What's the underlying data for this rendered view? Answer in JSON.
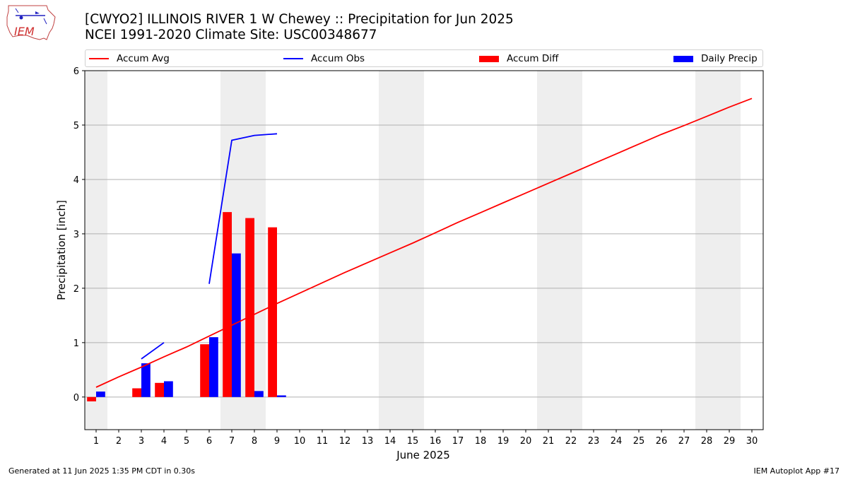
{
  "header": {
    "title_line1": "[CWYO2] ILLINOIS RIVER 1 W Chewey :: Precipitation for Jun 2025",
    "title_line2": "NCEI 1991-2020 Climate Site: USC00348677",
    "logo_text": "IEM"
  },
  "legend": {
    "items": [
      {
        "label": "Accum Avg",
        "marker": "line",
        "color": "#ff0000"
      },
      {
        "label": "Accum Obs",
        "marker": "line",
        "color": "#0000ff"
      },
      {
        "label": "Accum Diff",
        "marker": "box",
        "color": "#ff0000"
      },
      {
        "label": "Daily Precip",
        "marker": "box",
        "color": "#0000ff"
      }
    ]
  },
  "footer": {
    "generated": "Generated at 11 Jun 2025 1:35 PM CDT in 0.30s",
    "app": "IEM Autoplot App #17"
  },
  "chart_data": {
    "type": "bar",
    "xlabel": "June 2025",
    "ylabel": "Precipitation [inch]",
    "categories": [
      "1",
      "2",
      "3",
      "4",
      "5",
      "6",
      "7",
      "8",
      "9",
      "10",
      "11",
      "12",
      "13",
      "14",
      "15",
      "16",
      "17",
      "18",
      "19",
      "20",
      "21",
      "22",
      "23",
      "24",
      "25",
      "26",
      "27",
      "28",
      "29",
      "30"
    ],
    "ylim": [
      -0.6,
      6
    ],
    "yticks": [
      0,
      1,
      2,
      3,
      4,
      5,
      6
    ],
    "grid": "horizontal",
    "weekend_shading_days": [
      [
        1,
        1
      ],
      [
        7,
        8
      ],
      [
        14,
        15
      ],
      [
        21,
        22
      ],
      [
        28,
        29
      ]
    ],
    "series": [
      {
        "name": "Accum Avg",
        "kind": "line",
        "color": "#ff0000",
        "values": [
          0.18,
          0.37,
          0.55,
          0.74,
          0.92,
          1.12,
          1.32,
          1.52,
          1.72,
          1.91,
          2.1,
          2.29,
          2.47,
          2.65,
          2.83,
          3.02,
          3.21,
          3.39,
          3.57,
          3.75,
          3.93,
          4.11,
          4.29,
          4.47,
          4.65,
          4.83,
          4.99,
          5.16,
          5.33,
          5.49
        ]
      },
      {
        "name": "Accum Obs",
        "kind": "line",
        "color": "#0000ff",
        "values": [
          null,
          null,
          0.7,
          1.0,
          null,
          2.08,
          4.72,
          4.81,
          4.84,
          null,
          null,
          null,
          null,
          null,
          null,
          null,
          null,
          null,
          null,
          null,
          null,
          null,
          null,
          null,
          null,
          null,
          null,
          null,
          null,
          null
        ]
      },
      {
        "name": "Accum Diff",
        "kind": "bar",
        "color": "#ff0000",
        "values": [
          -0.08,
          null,
          0.16,
          0.26,
          null,
          0.97,
          3.4,
          3.29,
          3.12,
          null,
          null,
          null,
          null,
          null,
          null,
          null,
          null,
          null,
          null,
          null,
          null,
          null,
          null,
          null,
          null,
          null,
          null,
          null,
          null,
          null
        ]
      },
      {
        "name": "Daily Precip",
        "kind": "bar",
        "color": "#0000ff",
        "values": [
          0.1,
          null,
          0.62,
          0.29,
          null,
          1.1,
          2.64,
          0.11,
          0.03,
          null,
          null,
          null,
          null,
          null,
          null,
          null,
          null,
          null,
          null,
          null,
          null,
          null,
          null,
          null,
          null,
          null,
          null,
          null,
          null,
          null
        ]
      }
    ]
  }
}
